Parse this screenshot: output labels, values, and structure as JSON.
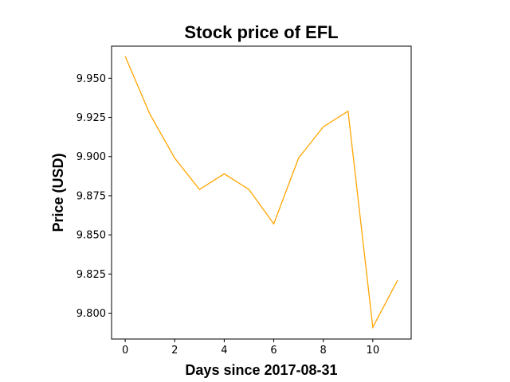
{
  "chart_data": {
    "type": "line",
    "title": "Stock price of EFL",
    "xlabel": "Days since 2017-08-31",
    "ylabel": "Price (USD)",
    "x": [
      0,
      1,
      2,
      3,
      4,
      5,
      6,
      7,
      8,
      9,
      10,
      11
    ],
    "series": [
      {
        "values": [
          9.964,
          9.927,
          9.899,
          9.879,
          9.889,
          9.879,
          9.857,
          9.899,
          9.919,
          9.929,
          9.791,
          9.821
        ],
        "color": "#ffa500"
      }
    ],
    "xlim": [
      -0.55,
      11.55
    ],
    "ylim": [
      9.7835,
      9.9705
    ],
    "xticks": [
      0,
      2,
      4,
      6,
      8,
      10
    ],
    "xtick_labels": [
      "0",
      "2",
      "4",
      "6",
      "8",
      "10"
    ],
    "yticks": [
      9.8,
      9.825,
      9.85,
      9.875,
      9.9,
      9.925,
      9.95
    ],
    "ytick_labels": [
      "9.800",
      "9.825",
      "9.850",
      "9.875",
      "9.900",
      "9.925",
      "9.950"
    ],
    "grid": false,
    "legend": false
  }
}
